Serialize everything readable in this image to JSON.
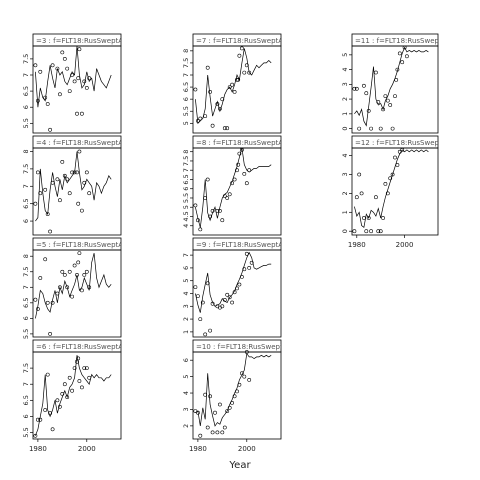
{
  "chart_data": {
    "type": "line",
    "xlabel": "Year",
    "x_range": [
      1978,
      2014
    ],
    "x_ticks": [
      1980,
      2000
    ],
    "grid": false,
    "panels": [
      {
        "label": "=3 : f=FLT18:RusSweptA",
        "ylim": [
          5.2,
          7.9
        ],
        "y_ticks": [
          5.5,
          6.0,
          6.5,
          7.0,
          7.5
        ],
        "years": [
          1979,
          1980,
          1981,
          1982,
          1983,
          1984,
          1985,
          1986,
          1987,
          1988,
          1989,
          1990,
          1991,
          1992,
          1993,
          1994,
          1995,
          1996,
          1997,
          1998,
          1999,
          2000,
          2001,
          2002,
          2003,
          2004,
          2005,
          2006,
          2007,
          2008,
          2009,
          2010
        ],
        "points": [
          7.3,
          6.2,
          7.1,
          6.3,
          6.1,
          5.3,
          7.3,
          7.2,
          6.4,
          7.7,
          7.5,
          7.2,
          6.5,
          7.0,
          6.8,
          5.8,
          6.9,
          7.8,
          5.8,
          6.8,
          6.6,
          6.9
        ],
        "point_years": [
          1979,
          1980,
          1981,
          1983,
          1984,
          1985,
          1986,
          1988,
          1989,
          1990,
          1991,
          1992,
          1993,
          1994,
          1995,
          1996,
          1996,
          1997,
          1998,
          1999,
          2000,
          2001
        ],
        "fit": [
          7.1,
          6.0,
          6.6,
          6.3,
          6.2,
          6.8,
          7.3,
          6.9,
          6.6,
          7.2,
          7.0,
          7.1,
          6.8,
          6.7,
          6.9,
          7.1,
          7.0,
          7.9,
          7.0,
          6.6,
          6.7,
          7.1,
          6.8,
          6.9,
          6.5,
          7.2,
          7.0,
          6.8,
          6.7,
          6.6,
          6.8,
          7.0
        ]
      },
      {
        "label": "=4 : f=FLT18:RusSweptA",
        "ylim": [
          5.6,
          8.1
        ],
        "y_ticks": [
          6.0,
          6.5,
          7.0,
          7.5,
          8.0
        ],
        "points": [
          6.5,
          7.4,
          6.8,
          6.9,
          6.2,
          5.7,
          7.1,
          7.2,
          6.6,
          7.7,
          7.3,
          7.2,
          6.8,
          7.4,
          7.4,
          7.4,
          6.5,
          8.0,
          6.3,
          7.1,
          7.4,
          6.8
        ],
        "point_years": [
          1979,
          1980,
          1981,
          1983,
          1984,
          1985,
          1986,
          1988,
          1989,
          1990,
          1991,
          1992,
          1993,
          1994,
          1995,
          1996,
          1996,
          1997,
          1998,
          1999,
          2000,
          2001
        ],
        "fit": [
          6.0,
          6.1,
          7.5,
          6.8,
          6.3,
          6.2,
          6.9,
          7.4,
          7.0,
          6.7,
          7.2,
          6.9,
          7.3,
          7.1,
          7.2,
          7.3,
          7.4,
          8.0,
          7.4,
          6.9,
          7.0,
          7.2,
          7.1,
          7.0,
          6.6,
          7.1,
          7.0,
          6.8,
          7.0,
          7.1,
          7.3,
          7.2
        ]
      },
      {
        "label": "=5 : f=FLT18:RusSweptA",
        "ylim": [
          5.4,
          8.2
        ],
        "y_ticks": [
          5.5,
          6.0,
          6.5,
          7.0,
          7.5,
          8.0
        ],
        "points": [
          6.6,
          6.3,
          7.3,
          7.9,
          6.5,
          5.5,
          6.5,
          6.8,
          7.0,
          7.5,
          7.4,
          7.0,
          7.5,
          6.7,
          7.7,
          7.4,
          7.8,
          8.1,
          6.9,
          7.4,
          7.5,
          7.0
        ],
        "point_years": [
          1979,
          1980,
          1981,
          1983,
          1984,
          1985,
          1986,
          1988,
          1989,
          1990,
          1991,
          1992,
          1993,
          1994,
          1995,
          1996,
          1996,
          1997,
          1998,
          1999,
          2000,
          2001
        ],
        "fit": [
          6.0,
          6.4,
          6.9,
          6.8,
          6.5,
          6.3,
          6.2,
          6.6,
          6.9,
          6.5,
          7.0,
          6.8,
          7.2,
          7.0,
          6.7,
          6.9,
          7.1,
          7.4,
          6.9,
          7.0,
          7.3,
          7.1,
          6.9,
          7.8,
          8.1,
          7.3,
          7.0,
          7.2,
          7.4,
          7.1,
          7.0,
          7.1
        ]
      },
      {
        "label": "=6 : f=FLT18:RusSweptA",
        "ylim": [
          5.3,
          8.0
        ],
        "y_ticks": [
          5.5,
          6.0,
          6.5,
          7.0,
          7.5
        ],
        "points": [
          5.4,
          5.9,
          5.9,
          6.2,
          7.3,
          6.1,
          5.6,
          6.5,
          6.3,
          6.7,
          7.0,
          6.6,
          7.2,
          6.8,
          7.5,
          7.7,
          7.8,
          7.1,
          6.9,
          7.5,
          7.5,
          7.2
        ],
        "point_years": [
          1979,
          1980,
          1981,
          1983,
          1984,
          1985,
          1986,
          1988,
          1989,
          1990,
          1991,
          1992,
          1993,
          1994,
          1995,
          1996,
          1996,
          1997,
          1998,
          1999,
          2000,
          2001
        ],
        "fit": [
          5.4,
          5.6,
          6.0,
          6.4,
          7.3,
          6.2,
          6.0,
          6.2,
          6.5,
          6.1,
          6.4,
          6.6,
          6.8,
          6.6,
          6.9,
          7.0,
          7.2,
          7.9,
          7.5,
          7.3,
          7.2,
          7.1,
          7.0,
          7.3,
          7.2,
          7.3,
          7.2,
          7.2,
          7.1,
          7.2,
          7.2,
          7.3
        ]
      },
      {
        "label": "=7 : f=FLT18:RusSweptA",
        "ylim": [
          4.6,
          8.2
        ],
        "y_ticks": [
          5.0,
          5.5,
          6.0,
          6.5,
          7.0,
          7.5,
          8.0
        ],
        "points": [
          6.4,
          5.1,
          5.2,
          5.3,
          7.3,
          6.3,
          4.9,
          5.8,
          5.6,
          6.0,
          4.8,
          4.8,
          6.5,
          6.6,
          6.3,
          6.8,
          6.8,
          7.8,
          8.1,
          7.1,
          7.4,
          7.1
        ],
        "point_years": [
          1979,
          1980,
          1981,
          1983,
          1984,
          1985,
          1986,
          1988,
          1989,
          1990,
          1991,
          1992,
          1993,
          1994,
          1995,
          1996,
          1996,
          1997,
          1998,
          1999,
          2000,
          2001
        ],
        "fit": [
          6.0,
          5.0,
          5.1,
          5.2,
          5.6,
          7.0,
          6.1,
          5.3,
          5.6,
          5.9,
          5.5,
          5.8,
          6.2,
          6.4,
          6.5,
          6.3,
          6.6,
          7.0,
          6.8,
          7.5,
          8.1,
          7.7,
          7.1,
          7.0,
          7.2,
          7.4,
          7.3,
          7.4,
          7.5,
          7.5,
          7.6,
          7.5
        ]
      },
      {
        "label": "=8 : f=FLT18:RusSweptA",
        "ylim": [
          3.5,
          8.2
        ],
        "y_ticks": [
          4.0,
          4.5,
          5.0,
          5.5,
          6.0,
          6.5,
          7.0,
          7.5,
          8.0
        ],
        "points": [
          5.1,
          4.3,
          3.8,
          5.5,
          6.5,
          4.5,
          4.8,
          4.8,
          4.8,
          4.3,
          5.6,
          5.5,
          5.7,
          6.3,
          6.5,
          7.0,
          7.3,
          7.9,
          8.1,
          6.8,
          6.3,
          7.0
        ],
        "point_years": [
          1979,
          1980,
          1981,
          1983,
          1984,
          1985,
          1986,
          1988,
          1989,
          1990,
          1991,
          1992,
          1993,
          1994,
          1995,
          1996,
          1996,
          1997,
          1998,
          1999,
          2000,
          2001
        ],
        "fit": [
          5.0,
          4.4,
          3.9,
          5.0,
          6.5,
          4.7,
          4.3,
          4.7,
          5.0,
          4.4,
          5.0,
          5.5,
          5.7,
          5.8,
          6.1,
          6.4,
          6.8,
          7.2,
          7.7,
          8.2,
          7.3,
          7.0,
          6.9,
          7.0,
          7.1,
          7.1,
          7.2,
          7.2,
          7.2,
          7.2,
          7.2,
          7.3
        ]
      },
      {
        "label": "=9 : f=FLT18:RusSweptA",
        "ylim": [
          0.6,
          7.4
        ],
        "y_ticks": [
          1,
          2,
          3,
          4,
          5,
          6,
          7
        ],
        "points": [
          4.5,
          3.8,
          2.0,
          3.3,
          0.8,
          4.8,
          1.1,
          3.2,
          3.0,
          2.9,
          3.0,
          3.5,
          3.9,
          3.7,
          3.3,
          4.1,
          4.4,
          4.7,
          5.3,
          5.9,
          7.1,
          6.0,
          6.4
        ],
        "point_years": [
          1979,
          1980,
          1981,
          1982,
          1983,
          1984,
          1985,
          1986,
          1988,
          1989,
          1990,
          1991,
          1992,
          1993,
          1994,
          1995,
          1996,
          1997,
          1998,
          1999,
          2000,
          2001,
          2002
        ],
        "fit": [
          4.0,
          3.1,
          2.5,
          3.8,
          4.7,
          5.6,
          3.9,
          3.3,
          3.0,
          3.1,
          3.2,
          3.6,
          3.4,
          3.3,
          3.7,
          3.9,
          4.2,
          4.7,
          5.1,
          5.6,
          6.2,
          6.8,
          7.2,
          6.8,
          6.0,
          5.9,
          6.0,
          6.1,
          6.2,
          6.2,
          6.3,
          6.3
        ]
      },
      {
        "label": "=10 : f=FLT18:RusSweptA",
        "ylim": [
          1.2,
          6.5
        ],
        "y_ticks": [
          2,
          3,
          4,
          5,
          6
        ],
        "points": [
          2.9,
          2.8,
          1.4,
          3.9,
          1.9,
          3.8,
          1.6,
          2.8,
          1.6,
          3.3,
          1.6,
          1.9,
          2.9,
          3.1,
          3.4,
          3.8,
          4.1,
          4.5,
          5.2,
          5.0,
          6.5,
          4.8
        ],
        "point_years": [
          1979,
          1980,
          1981,
          1983,
          1984,
          1985,
          1986,
          1987,
          1988,
          1989,
          1990,
          1991,
          1992,
          1993,
          1994,
          1995,
          1996,
          1997,
          1998,
          1999,
          2000,
          2001
        ],
        "fit": [
          2.8,
          2.9,
          2.0,
          3.1,
          2.4,
          5.2,
          3.3,
          2.6,
          2.0,
          2.2,
          2.1,
          2.5,
          2.7,
          2.9,
          3.3,
          3.6,
          4.0,
          4.3,
          4.8,
          5.1,
          5.4,
          6.4,
          6.2,
          6.2,
          6.1,
          6.2,
          6.2,
          6.3,
          6.2,
          6.3,
          6.2,
          6.3
        ]
      },
      {
        "label": "=11 : f=FLT18:RusSweptA",
        "ylim": [
          -0.3,
          5.6
        ],
        "y_ticks": [
          0,
          1,
          2,
          3,
          4,
          5
        ],
        "points": [
          2.7,
          2.7,
          0.0,
          2.9,
          2.4,
          1.2,
          0.0,
          3.8,
          1.8,
          0.0,
          1.3,
          2.2,
          1.9,
          1.6,
          0.0,
          2.2,
          3.3,
          4.0,
          5.1,
          4.5,
          5.5,
          4.9
        ],
        "point_years": [
          1979,
          1980,
          1981,
          1983,
          1984,
          1985,
          1986,
          1988,
          1989,
          1990,
          1991,
          1992,
          1993,
          1994,
          1995,
          1996,
          1996,
          1997,
          1998,
          1999,
          2000,
          2001
        ],
        "fit": [
          1.0,
          1.2,
          0.9,
          1.3,
          0.5,
          0.2,
          1.5,
          2.8,
          4.2,
          2.0,
          1.6,
          1.7,
          1.3,
          1.9,
          2.2,
          2.7,
          3.0,
          3.4,
          3.9,
          4.5,
          5.1,
          5.5,
          5.2,
          5.3,
          5.2,
          5.3,
          5.2,
          5.3,
          5.2,
          5.2,
          5.3,
          5.2
        ]
      },
      {
        "label": "=12 : f=FLT18:RusSweptA",
        "ylim": [
          -0.2,
          4.4
        ],
        "y_ticks": [
          0,
          1,
          2,
          3,
          4
        ],
        "points": [
          0.0,
          1.8,
          3.0,
          2.0,
          0.7,
          0.0,
          0.7,
          0.0,
          1.8,
          0.0,
          0.0,
          0.7,
          2.5,
          2.0,
          2.8,
          3.0,
          3.9,
          3.5,
          4.2,
          4.3
        ],
        "point_years": [
          1979,
          1980,
          1981,
          1982,
          1983,
          1984,
          1985,
          1986,
          1988,
          1989,
          1990,
          1991,
          1992,
          1993,
          1994,
          1995,
          1996,
          1997,
          1998,
          1999
        ],
        "fit": [
          1.3,
          0.8,
          1.0,
          0.3,
          0.2,
          0.9,
          0.7,
          1.1,
          1.0,
          0.8,
          1.2,
          0.7,
          1.3,
          1.8,
          2.2,
          2.6,
          3.0,
          3.4,
          3.8,
          4.1,
          4.3,
          4.2,
          4.3,
          4.2,
          4.3,
          4.2,
          4.3,
          4.2,
          4.3,
          4.2,
          4.3,
          4.2
        ]
      }
    ]
  }
}
